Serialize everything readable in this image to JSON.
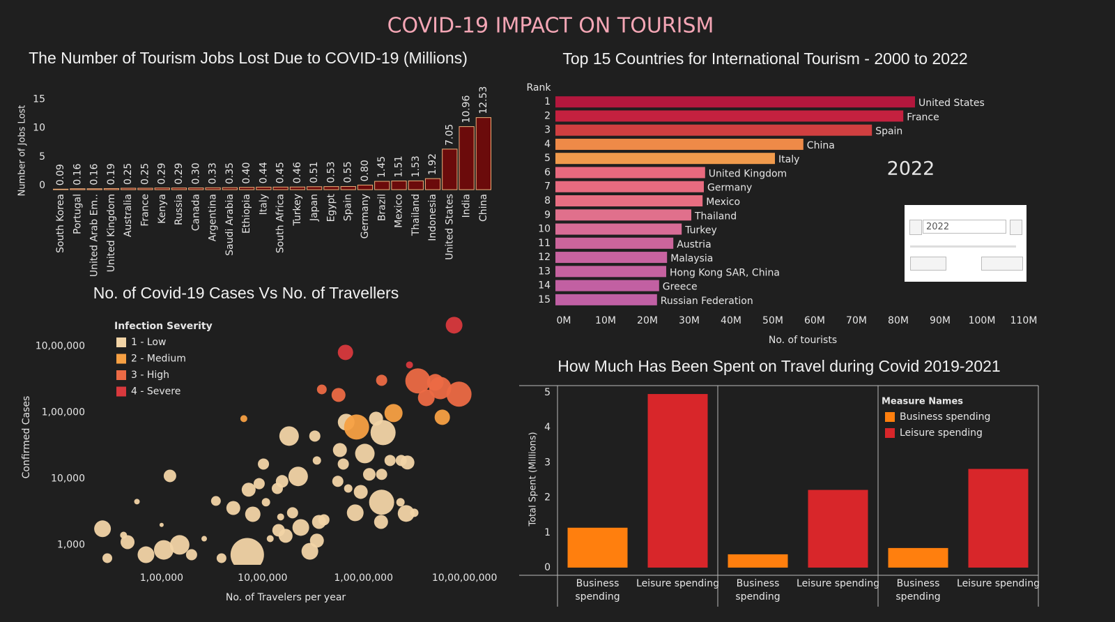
{
  "dashboard_title": "COVID-19 IMPACT ON TOURISM",
  "chart_data": [
    {
      "type": "bar",
      "title": "The Number of Tourism Jobs Lost Due to COVID-19 (Millions)",
      "y_label": "Number of Jobs Lost",
      "categories": [
        "South Korea",
        "Portugal",
        "United Arab Em..",
        "United Kingdom",
        "Australia",
        "France",
        "Kenya",
        "Russia",
        "Canada",
        "Argentina",
        "Saudi Arabia",
        "Ethiopia",
        "Italy",
        "South Africa",
        "Turkey",
        "Japan",
        "Egypt",
        "Spain",
        "Germany",
        "Brazil",
        "Mexico",
        "Thailand",
        "Indonesia",
        "United States",
        "India",
        "China"
      ],
      "values": [
        0.09,
        0.16,
        0.16,
        0.19,
        0.25,
        0.25,
        0.29,
        0.29,
        0.3,
        0.33,
        0.35,
        0.4,
        0.44,
        0.45,
        0.46,
        0.51,
        0.53,
        0.55,
        0.8,
        1.45,
        1.51,
        1.53,
        1.92,
        7.05,
        10.96,
        12.53
      ],
      "value_labels": [
        "0.09",
        "0.16",
        "0.16",
        "0.19",
        "0.25",
        "0.25",
        "0.29",
        "0.29",
        "0.30",
        "0.33",
        "0.35",
        "0.40",
        "0.44",
        "0.45",
        "0.46",
        "0.51",
        "0.53",
        "0.55",
        "0.80",
        "1.45",
        "1.51",
        "1.53",
        "1.92",
        "7.05",
        "10.96",
        "12.53"
      ],
      "color": "#6b0b0b",
      "edge_color": "#f0b07a",
      "ylim": [
        0,
        16
      ],
      "yticks": [
        0,
        5,
        10,
        15
      ]
    },
    {
      "type": "bar",
      "orientation": "horizontal",
      "title": "Top 15 Countries for International Tourism - 2000 to 2022",
      "rank_label": "Rank",
      "ranks": [
        1,
        2,
        3,
        4,
        5,
        6,
        7,
        8,
        9,
        10,
        11,
        12,
        13,
        14,
        15
      ],
      "categories": [
        "United States",
        "France",
        "Spain",
        "China",
        "Italy",
        "United Kingdom",
        "Germany",
        "Mexico",
        "Thailand",
        "Turkey",
        "Austria",
        "Malaysia",
        "Hong Kong SAR, China",
        "Greece",
        "Russian Federation"
      ],
      "values": [
        86,
        83.2,
        75.7,
        59.3,
        52.5,
        35.8,
        35.5,
        35.2,
        32.5,
        30.2,
        28.2,
        26.7,
        26.5,
        24.8,
        24.3
      ],
      "colors": [
        "#b3173d",
        "#c4213f",
        "#d03f40",
        "#ee8a48",
        "#f09a4c",
        "#e8697e",
        "#e86b80",
        "#e86e82",
        "#e0708c",
        "#d86c96",
        "#cc659c",
        "#c863a0",
        "#c662a0",
        "#c260a2",
        "#c060a4"
      ],
      "x_label": "No. of tourists",
      "xlim": [
        0,
        110
      ],
      "xticks": [
        {
          "value": 0,
          "label": "0M"
        },
        {
          "value": 10,
          "label": "10M"
        },
        {
          "value": 20,
          "label": "20M"
        },
        {
          "value": 30,
          "label": "30M"
        },
        {
          "value": 40,
          "label": "40M"
        },
        {
          "value": 50,
          "label": "50M"
        },
        {
          "value": 60,
          "label": "60M"
        },
        {
          "value": 70,
          "label": "70M"
        },
        {
          "value": 80,
          "label": "80M"
        },
        {
          "value": 90,
          "label": "90M"
        },
        {
          "value": 100,
          "label": "100M"
        },
        {
          "value": 110,
          "label": "110M"
        }
      ],
      "annotation": "2022",
      "year_filter": "2022"
    },
    {
      "type": "scatter",
      "title": "No. of Covid-19 Cases Vs No. of Travellers",
      "x_label": "No. of Travelers per year",
      "y_label": "Confirmed Cases",
      "log_x": true,
      "log_y": true,
      "xlim": [
        10000,
        170000000
      ],
      "ylim": [
        500,
        3000000
      ],
      "xticks": [
        {
          "value": 100000,
          "label": "1,00,000"
        },
        {
          "value": 1000000,
          "label": "10,00,000"
        },
        {
          "value": 10000000,
          "label": "1,00,00,000"
        },
        {
          "value": 100000000,
          "label": "10,00,00,000"
        }
      ],
      "yticks": [
        {
          "value": 1000,
          "label": "1,000"
        },
        {
          "value": 10000,
          "label": "10,000"
        },
        {
          "value": 100000,
          "label": "1,00,000"
        },
        {
          "value": 1000000,
          "label": "10,00,000"
        }
      ],
      "legend_title": "Infection Severity",
      "series": [
        {
          "name": "1 - Low",
          "color": "#f2d4a6",
          "x": [
            26000,
            29000,
            46000,
            42000,
            57000,
            70000,
            105000,
            121000,
            151000,
            198000,
            100000,
            264000,
            345000,
            513000,
            705000,
            800000,
            728000,
            925000,
            1020000,
            1080000,
            1190000,
            1400000,
            1560000,
            1440000,
            1690000,
            1830000,
            2250000,
            1980000,
            2390000,
            2940000,
            3450000,
            3620000,
            4050000,
            3290000,
            3450000,
            5560000,
            6300000,
            7050000,
            5830000,
            8270000,
            9380000,
            10300000,
            11400000,
            15100000,
            14900000,
            15600000,
            13300000,
            15100000,
            23200000,
            26400000,
            27200000,
            31800000,
            23600000,
            18300000,
            6730000,
            1510000,
            392000
          ],
          "values": [
            1750,
            630,
            1100,
            1400,
            4500,
            710,
            840,
            11000,
            1000,
            710,
            2000,
            1240,
            4600,
            3600,
            710,
            2900,
            6800,
            8400,
            16600,
            4400,
            1240,
            7100,
            9100,
            1660,
            1370,
            43900,
            10800,
            3050,
            1830,
            800,
            1160,
            2220,
            2390,
            43900,
            18800,
            9100,
            16600,
            7100,
            27000,
            3050,
            6300,
            23900,
            11600,
            4400,
            2220,
            49500,
            80400,
            11600,
            4400,
            2980,
            17500,
            3050,
            18800,
            18800,
            71200,
            2640,
            630
          ],
          "sizes": [
            12,
            7,
            10,
            5,
            4,
            12,
            14,
            9,
            14,
            8,
            3,
            4,
            7,
            10,
            24,
            11,
            10,
            8,
            8,
            6,
            5,
            8,
            9,
            9,
            10,
            14,
            14,
            8,
            12,
            12,
            10,
            10,
            8,
            8,
            6,
            8,
            8,
            6,
            10,
            12,
            10,
            14,
            9,
            18,
            10,
            18,
            10,
            8,
            6,
            12,
            10,
            6,
            8,
            8,
            12,
            5,
            7
          ]
        },
        {
          "name": "2 - Medium",
          "color": "#f7a043",
          "x": [
            652000,
            8530000,
            19800000,
            60200000
          ],
          "values": [
            80400,
            60100,
            97600,
            84400
          ],
          "sizes": [
            5,
            18,
            13,
            11
          ]
        },
        {
          "name": "3 - High",
          "color": "#ec6a45",
          "x": [
            3860000,
            5650000,
            15100000,
            34500000,
            57400000,
            88100000,
            41800000,
            51300000
          ],
          "values": [
            222000,
            183000,
            305000,
            298000,
            233000,
            188000,
            166000,
            284000
          ],
          "sizes": [
            7,
            10,
            8,
            18,
            16,
            18,
            12,
            12
          ]
        },
        {
          "name": "4 - Severe",
          "color": "#d8393d",
          "x": [
            78800000,
            6620000,
            28500000
          ],
          "values": [
            2070000,
            804000,
            520000
          ],
          "sizes": [
            12,
            11,
            5
          ]
        }
      ]
    },
    {
      "type": "bar",
      "title": "How Much Has Been Spent on Travel during Covid 2019-2021",
      "y_label": "Total Spent (Millions)",
      "legend_title": "Measure Names",
      "categories": [
        null,
        null,
        null
      ],
      "series": [
        {
          "name": "Business spending",
          "color": "#ff7f0e",
          "values": [
            1.14,
            0.38,
            0.56
          ]
        },
        {
          "name": "Leisure spending",
          "color": "#d8262a",
          "values": [
            4.96,
            2.22,
            2.82
          ]
        }
      ],
      "ylim": [
        0,
        5.2
      ],
      "yticks": [
        0,
        1,
        2,
        3,
        4,
        5
      ]
    }
  ]
}
